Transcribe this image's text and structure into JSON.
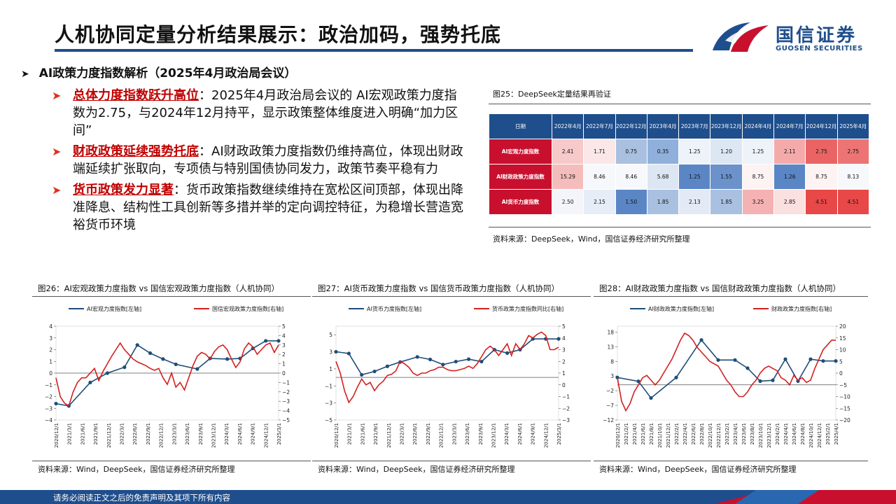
{
  "header": {
    "title": "人机协同定量分析结果展示：政治加码，强势托底"
  },
  "brand": {
    "name_cn": "国信证券",
    "name_en": "GUOSEN SECURITIES"
  },
  "section": {
    "heading": "AI政策力度指数解析（2025年4月政治局会议）",
    "arrow": "➤"
  },
  "bullets": [
    {
      "lead": "总体力度指数跃升高位",
      "text": "：2025年4月政治局会议的 AI宏观政策力度指数为2.75，与2024年12月持平，显示政策整体维度进入明确“加力区间”"
    },
    {
      "lead": "财政政策延续强势托底",
      "text": "：AI财政政策力度指数仍维持高位，体现出财政端延续扩张取向，专项债与特别国债协同发力，政策节奏平稳有力"
    },
    {
      "lead": "货币政策发力显著",
      "text": "：货币政策指数继续维持在宽松区间顶部，体现出降准降息、结构性工具创新等多措并举的定向调控特征，为稳增长营造宽裕货币环境"
    }
  ],
  "table": {
    "caption": "图25：DeepSeek定量结果再验证",
    "corner": "日期",
    "columns": [
      "2022年4月",
      "2022年7月",
      "2022年12月",
      "2023年4月",
      "2023年7月",
      "2023年12月",
      "2024年4月",
      "2024年7月",
      "2024年12月",
      "2025年4月"
    ],
    "rows": [
      {
        "label": "AI宏观力度指数",
        "values": [
          "2.41",
          "1.71",
          "0.75",
          "0.35",
          "1.25",
          "1.20",
          "1.25",
          "2.11",
          "2.75",
          "2.75"
        ],
        "colors": [
          "#f7c9c9",
          "#fbe7e7",
          "#a9c0e0",
          "#8fb0da",
          "#eef2f9",
          "#dde6f3",
          "#eef2f9",
          "#f5aaaa",
          "#ea6464",
          "#ec7474"
        ]
      },
      {
        "label": "AI财政政策力度指数",
        "values": [
          "15.29",
          "8.46",
          "8.46",
          "5.68",
          "1.25",
          "1.55",
          "8.75",
          "1.26",
          "8.75",
          "8.13"
        ],
        "colors": [
          "#f5bcbc",
          "#f7f8fc",
          "#f7f8fc",
          "#dde6f3",
          "#5b86c5",
          "#6b92ca",
          "#fdf3f3",
          "#5b86c5",
          "#fdf3f3",
          "#f7f8fc"
        ]
      },
      {
        "label": "AI货币力度指数",
        "values": [
          "2.50",
          "2.15",
          "1.50",
          "1.85",
          "2.13",
          "1.85",
          "3.25",
          "2.85",
          "4.51",
          "4.51"
        ],
        "colors": [
          "#f3f5fa",
          "#e7edf6",
          "#5b86c5",
          "#a9c0e0",
          "#e3eaf5",
          "#a9c0e0",
          "#f5b2b2",
          "#fbe0e0",
          "#e84848",
          "#e84848"
        ]
      }
    ],
    "source": "资料来源：DeepSeek，Wind，国信证券经济研究所整理"
  },
  "chart_data": [
    {
      "type": "line",
      "title": "图26：AI宏观政策力度指数 vs 国信宏观政策力度指数（人机协同）",
      "legend_position": "top",
      "x_ticks": [
        "2020/12/1",
        "2021/3/1",
        "2021/6/1",
        "2021/9/1",
        "2021/12/1",
        "2022/3/1",
        "2022/6/1",
        "2022/9/1",
        "2022/12/1",
        "2023/3/1",
        "2023/6/1",
        "2023/9/1",
        "2023/12/1",
        "2024/3/1",
        "2024/6/1",
        "2024/9/1",
        "2024/12/1",
        "2025/3/1"
      ],
      "x_range": [
        0,
        52
      ],
      "left_axis": {
        "ticks": [
          "4",
          "3",
          "2",
          "1",
          "0",
          "−1",
          "−2",
          "−3",
          "−4"
        ],
        "ylim": [
          -4,
          4
        ]
      },
      "right_axis": {
        "ticks": [
          "5",
          "4",
          "3",
          "2",
          "1",
          "0",
          "−1",
          "−2",
          "−3",
          "−4",
          "−5"
        ],
        "ylim": [
          -5,
          5
        ]
      },
      "series": [
        {
          "name": "AI宏观力度指数[左轴]",
          "axis": "left",
          "color": "#1f4e79",
          "markers": true,
          "x": [
            0,
            3,
            8,
            12,
            16,
            19,
            22,
            25,
            28,
            33,
            36,
            40,
            43,
            46,
            49,
            52
          ],
          "y": [
            -2.6,
            -2.8,
            -0.8,
            0.0,
            0.5,
            2.4,
            1.7,
            1.2,
            0.75,
            0.35,
            1.25,
            1.2,
            1.25,
            2.11,
            2.75,
            2.75
          ]
        },
        {
          "name": "国信宏观政策力度指数[右轴]",
          "axis": "right",
          "color": "#d42020",
          "markers": false,
          "x": [
            0,
            1,
            2,
            3,
            4,
            5,
            6,
            7,
            8,
            9,
            10,
            11,
            12,
            13,
            14,
            15,
            16,
            17,
            18,
            19,
            20,
            21,
            22,
            23,
            24,
            25,
            26,
            27,
            28,
            29,
            30,
            31,
            32,
            33,
            34,
            35,
            36,
            37,
            38,
            39,
            40,
            41,
            42,
            43,
            44,
            45,
            46,
            47,
            48,
            49,
            50,
            51,
            52
          ],
          "y": [
            -0.5,
            -2.5,
            -3.2,
            -3.5,
            -2.0,
            -1.0,
            -0.5,
            -0.5,
            0.0,
            0.5,
            -0.8,
            0.2,
            1.0,
            1.8,
            2.5,
            3.2,
            2.5,
            2.0,
            1.5,
            1.2,
            1.0,
            0.8,
            0.5,
            0.3,
            0.5,
            -0.5,
            -1.2,
            0.0,
            -1.5,
            -1.0,
            -1.8,
            -0.5,
            0.8,
            1.8,
            2.2,
            2.0,
            1.5,
            2.3,
            2.8,
            3.0,
            2.5,
            1.5,
            0.6,
            1.2,
            2.6,
            3.2,
            2.8,
            2.0,
            2.5,
            3.0,
            3.2,
            2.2,
            3.0
          ]
        }
      ],
      "source": "资料来源：Wind，DeepSeek，国信证券经济研究所整理"
    },
    {
      "type": "line",
      "title": "图27：AI货币政策力度指数 vs 国信货币政策力度指数（人机协同）",
      "legend_position": "top",
      "x_ticks": [
        "2020/12/1",
        "2021/3/1",
        "2021/6/1",
        "2021/9/1",
        "2021/12/1",
        "2022/3/1",
        "2022/6/1",
        "2022/9/1",
        "2022/12/1",
        "2023/3/1",
        "2023/6/1",
        "2023/9/1",
        "2023/12/1",
        "2024/3/1",
        "2024/6/1",
        "2024/9/1",
        "2024/12/1",
        "2025/3/1"
      ],
      "x_range": [
        0,
        52
      ],
      "left_axis": {
        "ticks": [
          "5",
          "3",
          "1",
          "−1",
          "−3",
          "−5"
        ],
        "ylim": [
          -5,
          6
        ]
      },
      "right_axis": {
        "ticks": [
          "5",
          "4",
          "3",
          "2",
          "1",
          "0",
          "−1",
          "−2",
          "−3"
        ],
        "ylim": [
          -3,
          5
        ]
      },
      "series": [
        {
          "name": "AI货币力度指数[左轴]",
          "axis": "left",
          "color": "#1f4e79",
          "markers": true,
          "x": [
            0,
            3,
            6,
            9,
            12,
            15,
            19,
            22,
            25,
            28,
            31,
            34,
            37,
            40,
            43,
            46,
            49,
            52
          ],
          "y": [
            3.0,
            2.8,
            0.3,
            0.7,
            1.3,
            1.8,
            2.4,
            2.1,
            1.5,
            1.85,
            2.13,
            1.85,
            3.25,
            2.85,
            3.25,
            4.51,
            4.51,
            4.51
          ]
        },
        {
          "name": "货币政策力度指数同比[右轴]",
          "axis": "right",
          "color": "#d42020",
          "markers": false,
          "x": [
            0,
            1,
            2,
            3,
            4,
            5,
            6,
            7,
            8,
            9,
            10,
            11,
            12,
            13,
            14,
            15,
            16,
            17,
            18,
            19,
            20,
            21,
            22,
            23,
            24,
            25,
            26,
            27,
            28,
            29,
            30,
            31,
            32,
            33,
            34,
            35,
            36,
            37,
            38,
            39,
            40,
            41,
            42,
            43,
            44,
            45,
            46,
            47,
            48,
            49,
            50,
            51,
            52
          ],
          "y": [
            2.0,
            1.0,
            -0.5,
            -1.5,
            -1.0,
            -0.2,
            0.5,
            0.0,
            0.2,
            -0.5,
            0.0,
            0.3,
            0.8,
            0.9,
            1.2,
            2.0,
            1.8,
            1.5,
            1.0,
            0.8,
            1.0,
            1.0,
            1.2,
            1.3,
            1.5,
            1.5,
            1.3,
            1.2,
            1.2,
            1.3,
            1.4,
            1.6,
            1.4,
            1.8,
            2.4,
            3.0,
            3.3,
            3.0,
            2.5,
            3.0,
            3.5,
            2.5,
            3.5,
            3.0,
            3.5,
            4.2,
            4.0,
            4.3,
            4.5,
            4.2,
            3.0,
            3.0,
            3.2
          ]
        }
      ],
      "source": "资料来源：Wind，DeepSeek，国信证券经济研究所整理"
    },
    {
      "type": "line",
      "title": "图28：AI财政政策力度指数 vs 国信财政政策力度指数（人机协同）",
      "legend_position": "top",
      "x_ticks": [
        "2020/12/1",
        "2021/2/1",
        "2021/4/1",
        "2021/6/1",
        "2021/8/1",
        "2021/10/1",
        "2021/12/1",
        "2022/2/1",
        "2022/4/1",
        "2022/6/1",
        "2022/8/1",
        "2022/10/1",
        "2022/12/1",
        "2023/2/1",
        "2023/4/1",
        "2023/6/1",
        "2023/8/1",
        "2023/10/1",
        "2023/12/1",
        "2024/2/1",
        "2024/4/1",
        "2024/6/1",
        "2024/8/1",
        "2024/10/1",
        "2024/12/1",
        "2025/2/1",
        "2025/4/1"
      ],
      "x_range": [
        0,
        52
      ],
      "left_axis": {
        "ticks": [
          "18",
          "13",
          "8",
          "3",
          "−2",
          "−7",
          "−12"
        ],
        "ylim": [
          -12,
          20
        ]
      },
      "right_axis": {
        "ticks": [
          "20",
          "15",
          "10",
          "5",
          "0",
          "−5",
          "−10",
          "−15",
          "−20"
        ],
        "ylim": [
          -20,
          20
        ]
      },
      "series": [
        {
          "name": "AI财政政策力度指数[左轴]",
          "axis": "left",
          "color": "#1f4e79",
          "markers": true,
          "x": [
            0,
            5,
            8,
            14,
            20,
            24,
            28,
            31,
            34,
            37,
            40,
            43,
            46,
            49,
            52
          ],
          "y": [
            2.5,
            1.2,
            -4.5,
            2.5,
            15.29,
            8.46,
            8.46,
            5.68,
            1.25,
            1.55,
            8.75,
            1.26,
            8.75,
            8.13,
            8.13
          ]
        },
        {
          "name": "财政政策力度指数[右轴]",
          "axis": "right",
          "color": "#d42020",
          "markers": false,
          "x": [
            0,
            1,
            2,
            3,
            4,
            5,
            6,
            7,
            8,
            9,
            10,
            11,
            12,
            13,
            14,
            15,
            16,
            17,
            18,
            19,
            20,
            21,
            22,
            23,
            24,
            25,
            26,
            27,
            28,
            29,
            30,
            31,
            32,
            33,
            34,
            35,
            36,
            37,
            38,
            39,
            40,
            41,
            42,
            43,
            44,
            45,
            46,
            47,
            48,
            49,
            50,
            51,
            52
          ],
          "y": [
            -2,
            -12,
            -16,
            -13,
            -8,
            -5,
            -2,
            -1,
            -3,
            -5,
            -3,
            0,
            3,
            6,
            10,
            14,
            17,
            16,
            14,
            11,
            9,
            7,
            5,
            4,
            3,
            0,
            -3,
            -5,
            -8,
            -10,
            -10,
            -8,
            -5,
            -3,
            0,
            2,
            3,
            2,
            1,
            -2,
            -3,
            -5,
            -1,
            -3,
            -2,
            -4,
            -3,
            2,
            6,
            10,
            12,
            14,
            14
          ]
        }
      ],
      "source": "资料来源：Wind，DeepSeek，国信证券经济研究所整理"
    }
  ],
  "footer": {
    "text": "请务必阅读正文之后的免责声明及其项下所有内容"
  }
}
